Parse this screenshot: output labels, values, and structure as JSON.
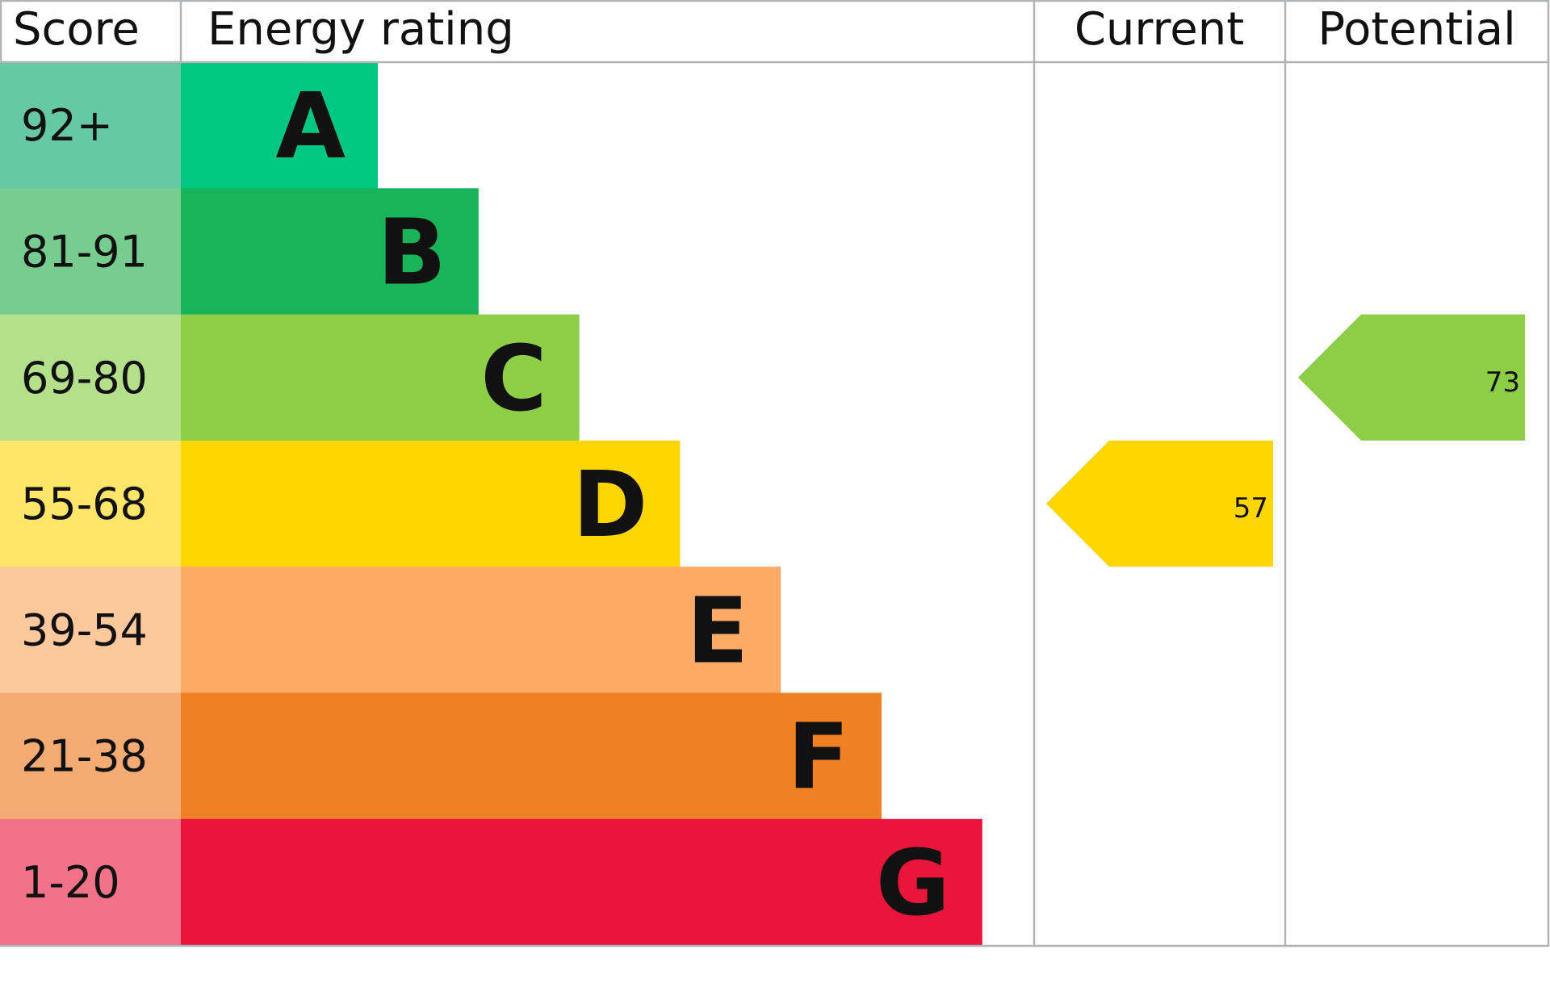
{
  "chart_data": {
    "type": "table",
    "headers": {
      "score": "Score",
      "rating": "Energy rating",
      "current": "Current",
      "potential": "Potential"
    },
    "bands": [
      {
        "letter": "A",
        "range": "92+",
        "color": "#00c781",
        "score_bg": "#64c9a4"
      },
      {
        "letter": "B",
        "range": "81-91",
        "color": "#19b459",
        "score_bg": "#76cd8f"
      },
      {
        "letter": "C",
        "range": "69-80",
        "color": "#8dce46",
        "score_bg": "#b5e08b"
      },
      {
        "letter": "D",
        "range": "55-68",
        "color": "#ffd500",
        "score_bg": "#ffe56a"
      },
      {
        "letter": "E",
        "range": "39-54",
        "color": "#fcaa65",
        "score_bg": "#fdc89c"
      },
      {
        "letter": "F",
        "range": "21-38",
        "color": "#ef8023",
        "score_bg": "#f4ab73"
      },
      {
        "letter": "G",
        "range": "1-20",
        "color": "#e9153b",
        "score_bg": "#f27389"
      }
    ],
    "current": {
      "value": "57",
      "band": "D",
      "color": "#ffd500"
    },
    "potential": {
      "value": "73",
      "band": "C",
      "color": "#8dce46"
    },
    "grid_color": "#b1b4b6"
  }
}
